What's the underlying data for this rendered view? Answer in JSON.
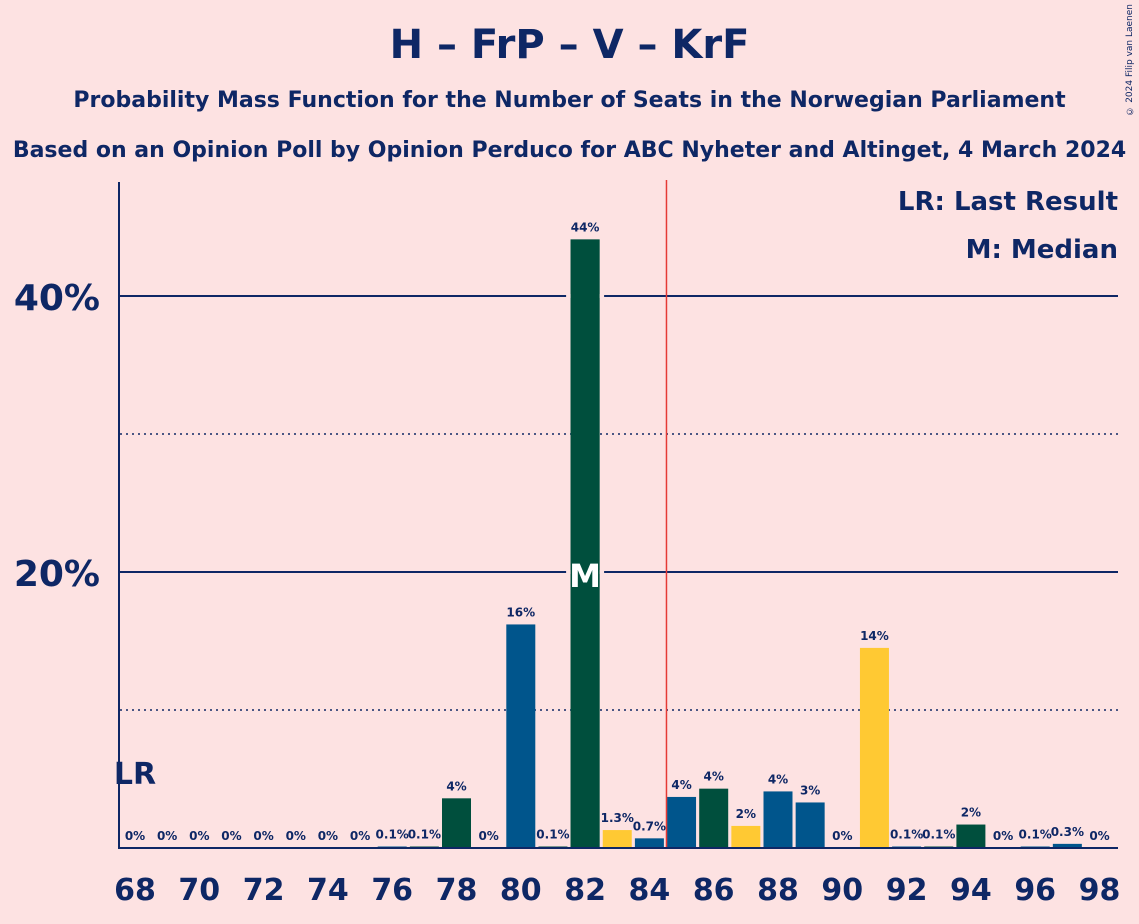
{
  "title": "H – FrP – V – KrF",
  "subtitle": "Probability Mass Function for the Number of Seats in the Norwegian Parliament",
  "subtitle2": "Based on an Opinion Poll by Opinion Perduco for ABC Nyheter and Altinget, 4 March 2024",
  "copyright": "© 2024 Filip van Laenen",
  "legend": {
    "lr": "LR: Last Result",
    "median": "M: Median"
  },
  "markers": {
    "last_result_label": "LR",
    "median_label": "M",
    "last_result_seat": 68,
    "median_seat": 82,
    "majority_line_seat": 84.5
  },
  "colors": {
    "H": "#00558C",
    "FrP": "#004F3D",
    "V": "#FFC933",
    "text": "#0E2765",
    "majority": "#E53935",
    "background": "#FDE2E2"
  },
  "chart_data": {
    "type": "bar",
    "x": [
      68,
      69,
      70,
      71,
      72,
      73,
      74,
      75,
      76,
      77,
      78,
      79,
      80,
      81,
      82,
      83,
      84,
      85,
      86,
      87,
      88,
      89,
      90,
      91,
      92,
      93,
      94,
      95,
      96,
      97,
      98
    ],
    "values": [
      0,
      0,
      0,
      0,
      0,
      0,
      0,
      0,
      0.1,
      0.1,
      3.6,
      0,
      16.2,
      0.1,
      44.1,
      1.3,
      0.7,
      3.7,
      4.3,
      1.6,
      4.1,
      3.3,
      0,
      14.5,
      0.1,
      0.1,
      1.7,
      0,
      0.1,
      0.3,
      0
    ],
    "labels": [
      "0%",
      "0%",
      "0%",
      "0%",
      "0%",
      "0%",
      "0%",
      "0%",
      "0.1%",
      "0.1%",
      "4%",
      "0%",
      "16%",
      "0.1%",
      "44%",
      "1.3%",
      "0.7%",
      "4%",
      "4%",
      "2%",
      "4%",
      "3%",
      "0%",
      "14%",
      "0.1%",
      "0.1%",
      "2%",
      "0%",
      "0.1%",
      "0.3%",
      "0%"
    ],
    "bar_colors": [
      "#00558C",
      "#004F3D",
      "#FFC933",
      "#00558C",
      "#00558C",
      "#004F3D",
      "#FFC933",
      "#00558C",
      "#00558C",
      "#004F3D",
      "#004F3D",
      "#FFC933",
      "#00558C",
      "#004F3D",
      "#004F3D",
      "#FFC933",
      "#00558C",
      "#00558C",
      "#004F3D",
      "#FFC933",
      "#00558C",
      "#00558C",
      "#004F3D",
      "#FFC933",
      "#00558C",
      "#004F3D",
      "#004F3D",
      "#FFC933",
      "#00558C",
      "#00558C",
      "#004F3D"
    ],
    "x_tick_labels": [
      "68",
      "70",
      "72",
      "74",
      "76",
      "78",
      "80",
      "82",
      "84",
      "86",
      "88",
      "90",
      "92",
      "94",
      "96",
      "98"
    ],
    "y_tick_labels": [
      "20%",
      "40%"
    ],
    "y_ticks": [
      20,
      40
    ],
    "y_minor_ticks": [
      10,
      30
    ],
    "ylim": [
      0,
      48
    ]
  }
}
